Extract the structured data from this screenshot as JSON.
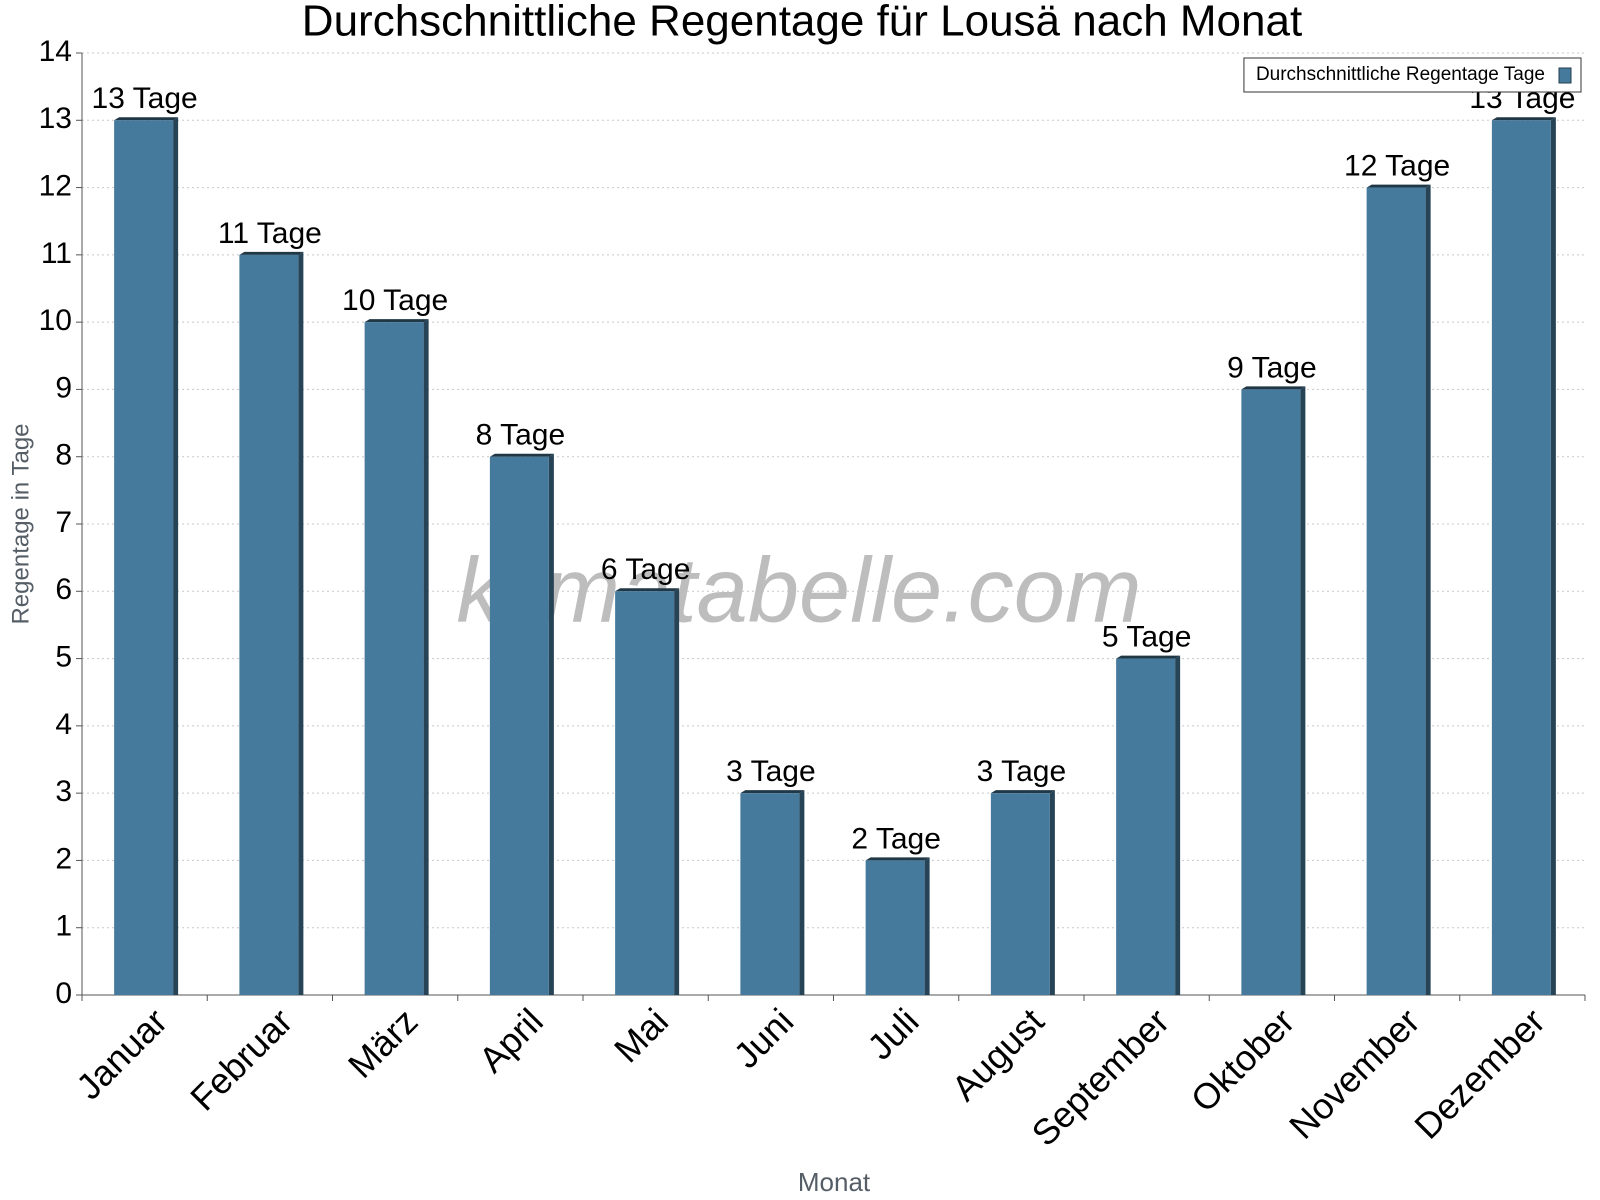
{
  "chart_data": {
    "type": "bar",
    "title": "Durchschnittliche Regentage für Lousä nach Monat",
    "x_label": "Monat",
    "y_label": "Regentage in Tage",
    "watermark": "klimatabelle.com",
    "categories": [
      "Januar",
      "Februar",
      "März",
      "April",
      "Mai",
      "Juni",
      "Juli",
      "August",
      "September",
      "Oktober",
      "November",
      "Dezember"
    ],
    "series": [
      {
        "name": "Durchschnittliche Regentage Tage",
        "color": "#467a9c",
        "values": [
          13,
          11,
          10,
          8,
          6,
          3,
          2,
          3,
          5,
          9,
          12,
          13
        ],
        "value_labels": [
          "13 Tage",
          "11 Tage",
          "10 Tage",
          "8 Tage",
          "6 Tage",
          "3 Tage",
          "2 Tage",
          "3 Tage",
          "5 Tage",
          "9 Tage",
          "12 Tage",
          "13 Tage"
        ]
      }
    ],
    "ylim": [
      0,
      14
    ],
    "yticks": [
      0,
      1,
      2,
      3,
      4,
      5,
      6,
      7,
      8,
      9,
      10,
      11,
      12,
      13,
      14
    ],
    "grid": true,
    "legend": "top-right"
  }
}
